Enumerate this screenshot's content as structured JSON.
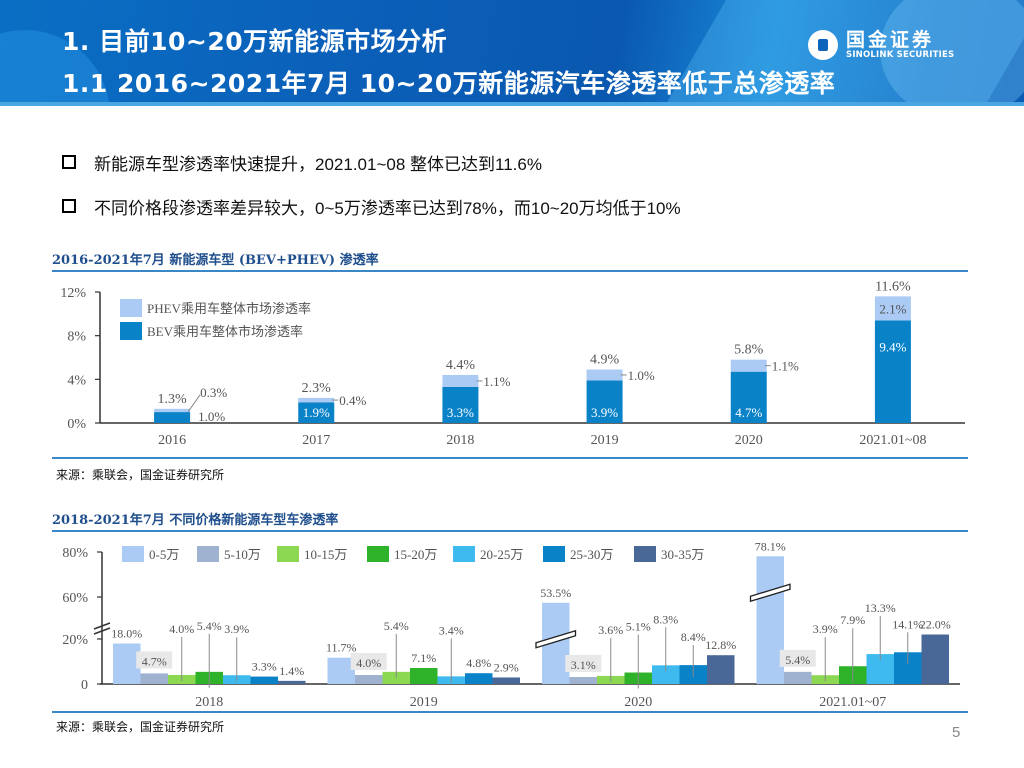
{
  "header": {
    "title": "1. 目前10~20万新能源市场分析",
    "subtitle": "1.1 2016~2021年7月 10~20万新能源汽车渗透率低于总渗透率",
    "logo_cn": "国金证券",
    "logo_en": "SINOLINK SECURITIES"
  },
  "bullets": [
    "新能源车型渗透率快速提升，2021.01~08 整体已达到11.6%",
    "不同价格段渗透率差异较大，0~5万渗透率已达到78%，而10~20万均低于10%"
  ],
  "page_number": "5",
  "colors": {
    "bev": "#0a82c8",
    "phev": "#abcbf5",
    "title_blue": "#1f4e8c",
    "rule_blue": "#3a87c8"
  },
  "chart_data": [
    {
      "type": "bar",
      "stacked": true,
      "title": "2016-2021年7月 新能源车型 (BEV+PHEV) 渗透率",
      "source": "来源：乘联会，国金证券研究所",
      "categories": [
        "2016",
        "2017",
        "2018",
        "2019",
        "2020",
        "2021.01~08"
      ],
      "series": [
        {
          "name": "BEV乘用车整体市场渗透率",
          "values": [
            1.0,
            1.9,
            3.3,
            3.9,
            4.7,
            9.4
          ],
          "labels": [
            "1.0%",
            "1.9%",
            "3.3%",
            "3.9%",
            "4.7%",
            "9.4%"
          ]
        },
        {
          "name": "PHEV乘用车整体市场渗透率",
          "values": [
            0.3,
            0.4,
            1.1,
            1.0,
            1.1,
            2.1
          ],
          "labels": [
            "0.3%",
            "0.4%",
            "1.1%",
            "1.0%",
            "1.1%",
            "2.1%"
          ]
        }
      ],
      "totals": [
        1.3,
        2.3,
        4.4,
        4.9,
        5.8,
        11.6
      ],
      "total_labels": [
        "1.3%",
        "2.3%",
        "4.4%",
        "4.9%",
        "5.8%",
        "11.6%"
      ],
      "yticks": [
        "0%",
        "4%",
        "8%",
        "12%"
      ],
      "ylim": [
        0,
        12
      ],
      "ylabel": "",
      "xlabel": "",
      "legend": "top-left"
    },
    {
      "type": "bar",
      "stacked": false,
      "title": "2018-2021年7月 不同价格新能源车型车渗透率",
      "source": "来源：乘联会，国金证券研究所",
      "categories": [
        "2018",
        "2019",
        "2020",
        "2021.01~07"
      ],
      "series": [
        {
          "name": "0-5万",
          "color": "#abcbf5",
          "values": [
            18.0,
            11.7,
            53.5,
            78.1
          ]
        },
        {
          "name": "5-10万",
          "color": "#9fb3d1",
          "values": [
            4.7,
            4.0,
            3.1,
            5.4
          ]
        },
        {
          "name": "10-15万",
          "color": "#8cd852",
          "values": [
            4.0,
            5.4,
            3.6,
            3.9
          ]
        },
        {
          "name": "15-20万",
          "color": "#2eb22a",
          "values": [
            5.4,
            7.1,
            5.1,
            7.9
          ]
        },
        {
          "name": "20-25万",
          "color": "#3fbaee",
          "values": [
            3.9,
            3.4,
            8.3,
            13.3
          ]
        },
        {
          "name": "25-30万",
          "color": "#0a82c8",
          "values": [
            3.3,
            4.8,
            8.4,
            14.1
          ]
        },
        {
          "name": "30-35万",
          "color": "#4a6897",
          "values": [
            1.4,
            2.9,
            12.8,
            22.0
          ]
        }
      ],
      "yticks": [
        "0",
        "20%",
        "60%",
        "80%"
      ],
      "axis_break": "between 20% and 60%",
      "ylim": [
        0,
        80
      ],
      "ylabel": "",
      "xlabel": "",
      "legend": "top"
    }
  ]
}
